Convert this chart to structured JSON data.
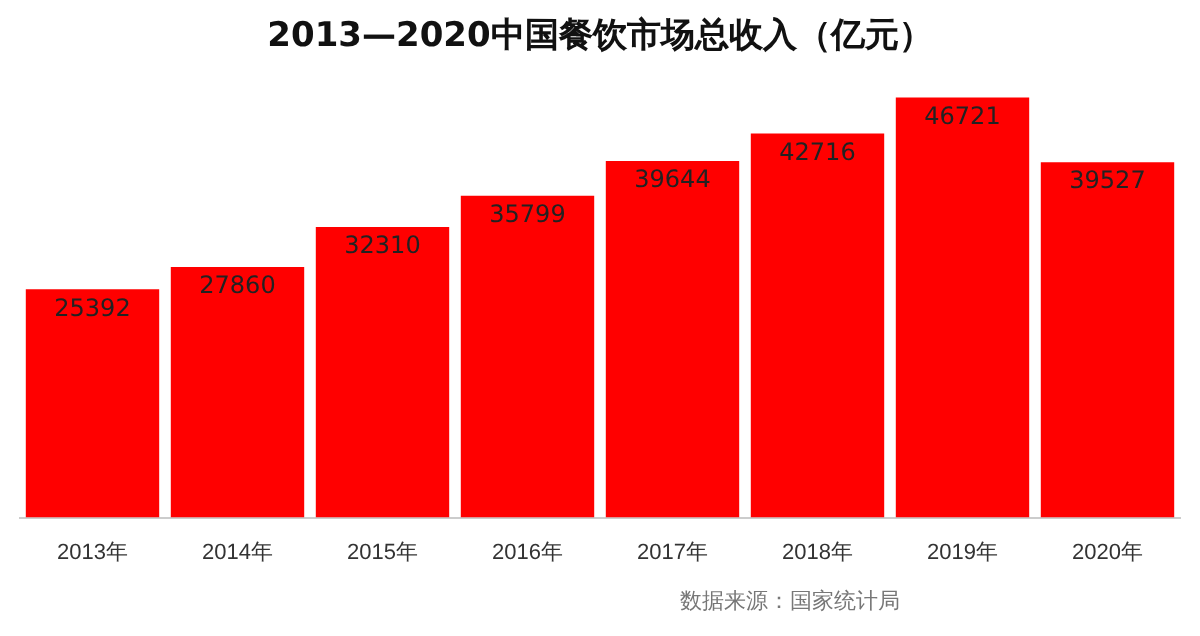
{
  "chart_data": {
    "type": "bar",
    "title": "2013—2020中国餐饮市场总收入（亿元）",
    "categories": [
      "2013年",
      "2014年",
      "2015年",
      "2016年",
      "2017年",
      "2018年",
      "2019年",
      "2020年"
    ],
    "values": [
      25392,
      27860,
      32310,
      35799,
      39644,
      42716,
      46721,
      39527
    ],
    "color": "#ff0000",
    "data_labels": true,
    "annotations": [
      "数据来源：国家统计局"
    ]
  }
}
